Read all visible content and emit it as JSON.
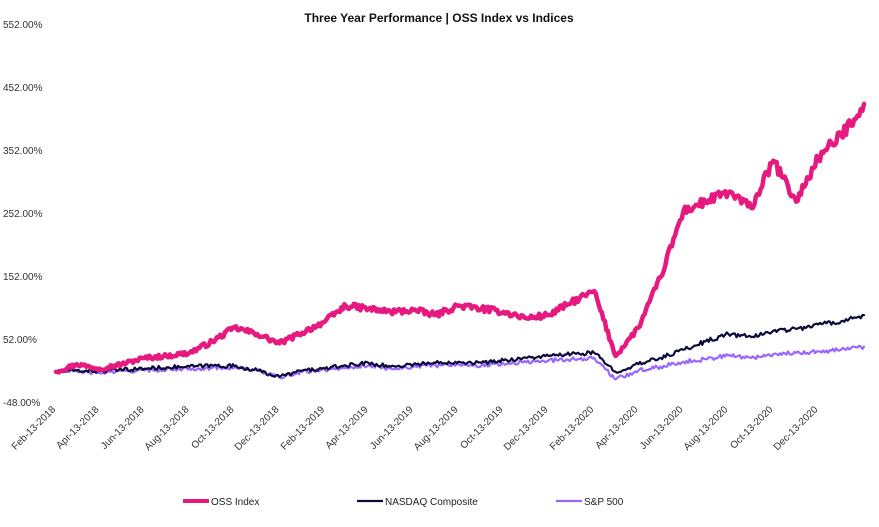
{
  "chart_data": {
    "type": "line",
    "title": "Three Year Performance | OSS Index vs Indices",
    "xlabel": "",
    "ylabel": "",
    "ylim": [
      -48,
      552
    ],
    "y_ticks": [
      "552.00%",
      "452.00%",
      "352.00%",
      "252.00%",
      "152.00%",
      "52.00%",
      "-48.00%"
    ],
    "y_tick_values": [
      552,
      452,
      352,
      252,
      152,
      52,
      -48
    ],
    "x_tick_labels": [
      "Feb-13-2018",
      "Apr-13-2018",
      "Jun-13-2018",
      "Aug-13-2018",
      "Oct-13-2018",
      "Dec-13-2018",
      "Feb-13-2019",
      "Apr-13-2019",
      "Jun-13-2019",
      "Aug-13-2019",
      "Oct-13-2019",
      "Dec-13-2019",
      "Feb-13-2020",
      "Apr-13-2020",
      "Jun-13-2020",
      "Aug-13-2020",
      "Oct-13-2020",
      "Dec-13-2020"
    ],
    "x_dates": [
      "2018-02-13",
      "2018-03-13",
      "2018-04-13",
      "2018-05-13",
      "2018-06-13",
      "2018-07-13",
      "2018-08-13",
      "2018-09-13",
      "2018-10-13",
      "2018-11-13",
      "2018-12-13",
      "2019-01-13",
      "2019-02-13",
      "2019-03-13",
      "2019-04-13",
      "2019-05-13",
      "2019-06-13",
      "2019-07-13",
      "2019-08-13",
      "2019-09-13",
      "2019-10-13",
      "2019-11-13",
      "2019-12-13",
      "2020-01-13",
      "2020-02-13",
      "2020-03-13",
      "2020-04-13",
      "2020-05-13",
      "2020-06-13",
      "2020-07-13",
      "2020-08-13",
      "2020-09-13",
      "2020-10-13",
      "2020-11-13",
      "2020-12-13",
      "2021-01-13",
      "2021-02-13"
    ],
    "grid": false,
    "legend": "bottom",
    "series": [
      {
        "name": "OSS Index",
        "color": "#e6197f",
        "values": [
          0,
          12,
          5,
          12,
          22,
          25,
          30,
          48,
          70,
          60,
          45,
          62,
          80,
          105,
          100,
          95,
          98,
          90,
          105,
          100,
          95,
          85,
          90,
          110,
          128,
          25,
          70,
          150,
          255,
          270,
          285,
          260,
          335,
          270,
          340,
          375,
          425
        ]
      },
      {
        "name": "NASDAQ Composite",
        "color": "#0b0b3b",
        "values": [
          0,
          2,
          1,
          3,
          5,
          7,
          8,
          10,
          9,
          2,
          -8,
          2,
          5,
          10,
          14,
          8,
          12,
          14,
          16,
          14,
          18,
          22,
          25,
          28,
          30,
          0,
          12,
          22,
          35,
          48,
          60,
          55,
          65,
          68,
          75,
          80,
          90
        ]
      },
      {
        "name": "S&P 500",
        "color": "#9966ff",
        "values": [
          0,
          1,
          -2,
          1,
          2,
          4,
          5,
          6,
          7,
          2,
          -9,
          0,
          3,
          7,
          10,
          5,
          8,
          10,
          12,
          10,
          13,
          15,
          18,
          20,
          22,
          -12,
          2,
          8,
          16,
          20,
          26,
          22,
          28,
          30,
          32,
          35,
          40
        ]
      }
    ]
  }
}
